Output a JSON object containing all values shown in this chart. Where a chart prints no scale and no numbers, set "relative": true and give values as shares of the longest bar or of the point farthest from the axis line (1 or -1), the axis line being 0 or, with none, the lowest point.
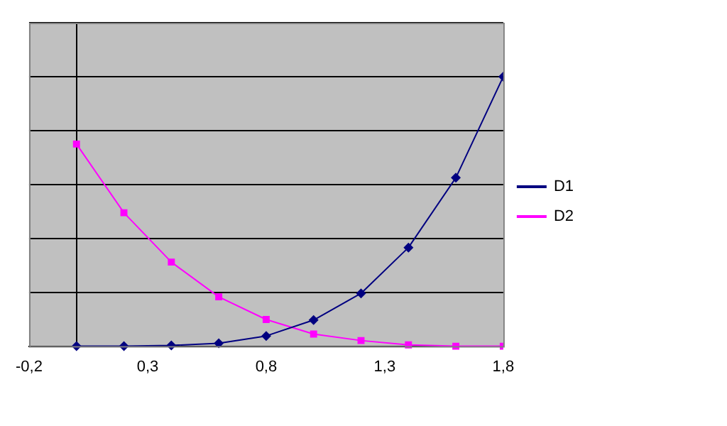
{
  "chart_data": {
    "type": "line",
    "relative": true,
    "x": [
      0,
      0.2,
      0.4,
      0.6,
      0.8,
      1.0,
      1.2,
      1.4,
      1.6,
      1.8
    ],
    "series": [
      {
        "name": "D1",
        "color": "#000080",
        "marker": "diamond",
        "values": [
          0,
          0,
          0.003,
          0.011,
          0.038,
          0.097,
          0.196,
          0.366,
          0.625,
          1
        ]
      },
      {
        "name": "D2",
        "color": "#ff00ff",
        "marker": "square",
        "values": [
          0.75,
          0.495,
          0.312,
          0.183,
          0.099,
          0.045,
          0.021,
          0.005,
          0,
          0
        ]
      }
    ],
    "xlim": [
      -0.2,
      1.8
    ],
    "xticks": [
      {
        "value": -0.2,
        "label": "-0,2"
      },
      {
        "value": 0.3,
        "label": "0,3"
      },
      {
        "value": 0.8,
        "label": "0,8"
      },
      {
        "value": 1.3,
        "label": "1,3"
      },
      {
        "value": 1.8,
        "label": "1,8"
      }
    ],
    "grid": "y",
    "legend": "right",
    "line_style": "solid"
  }
}
